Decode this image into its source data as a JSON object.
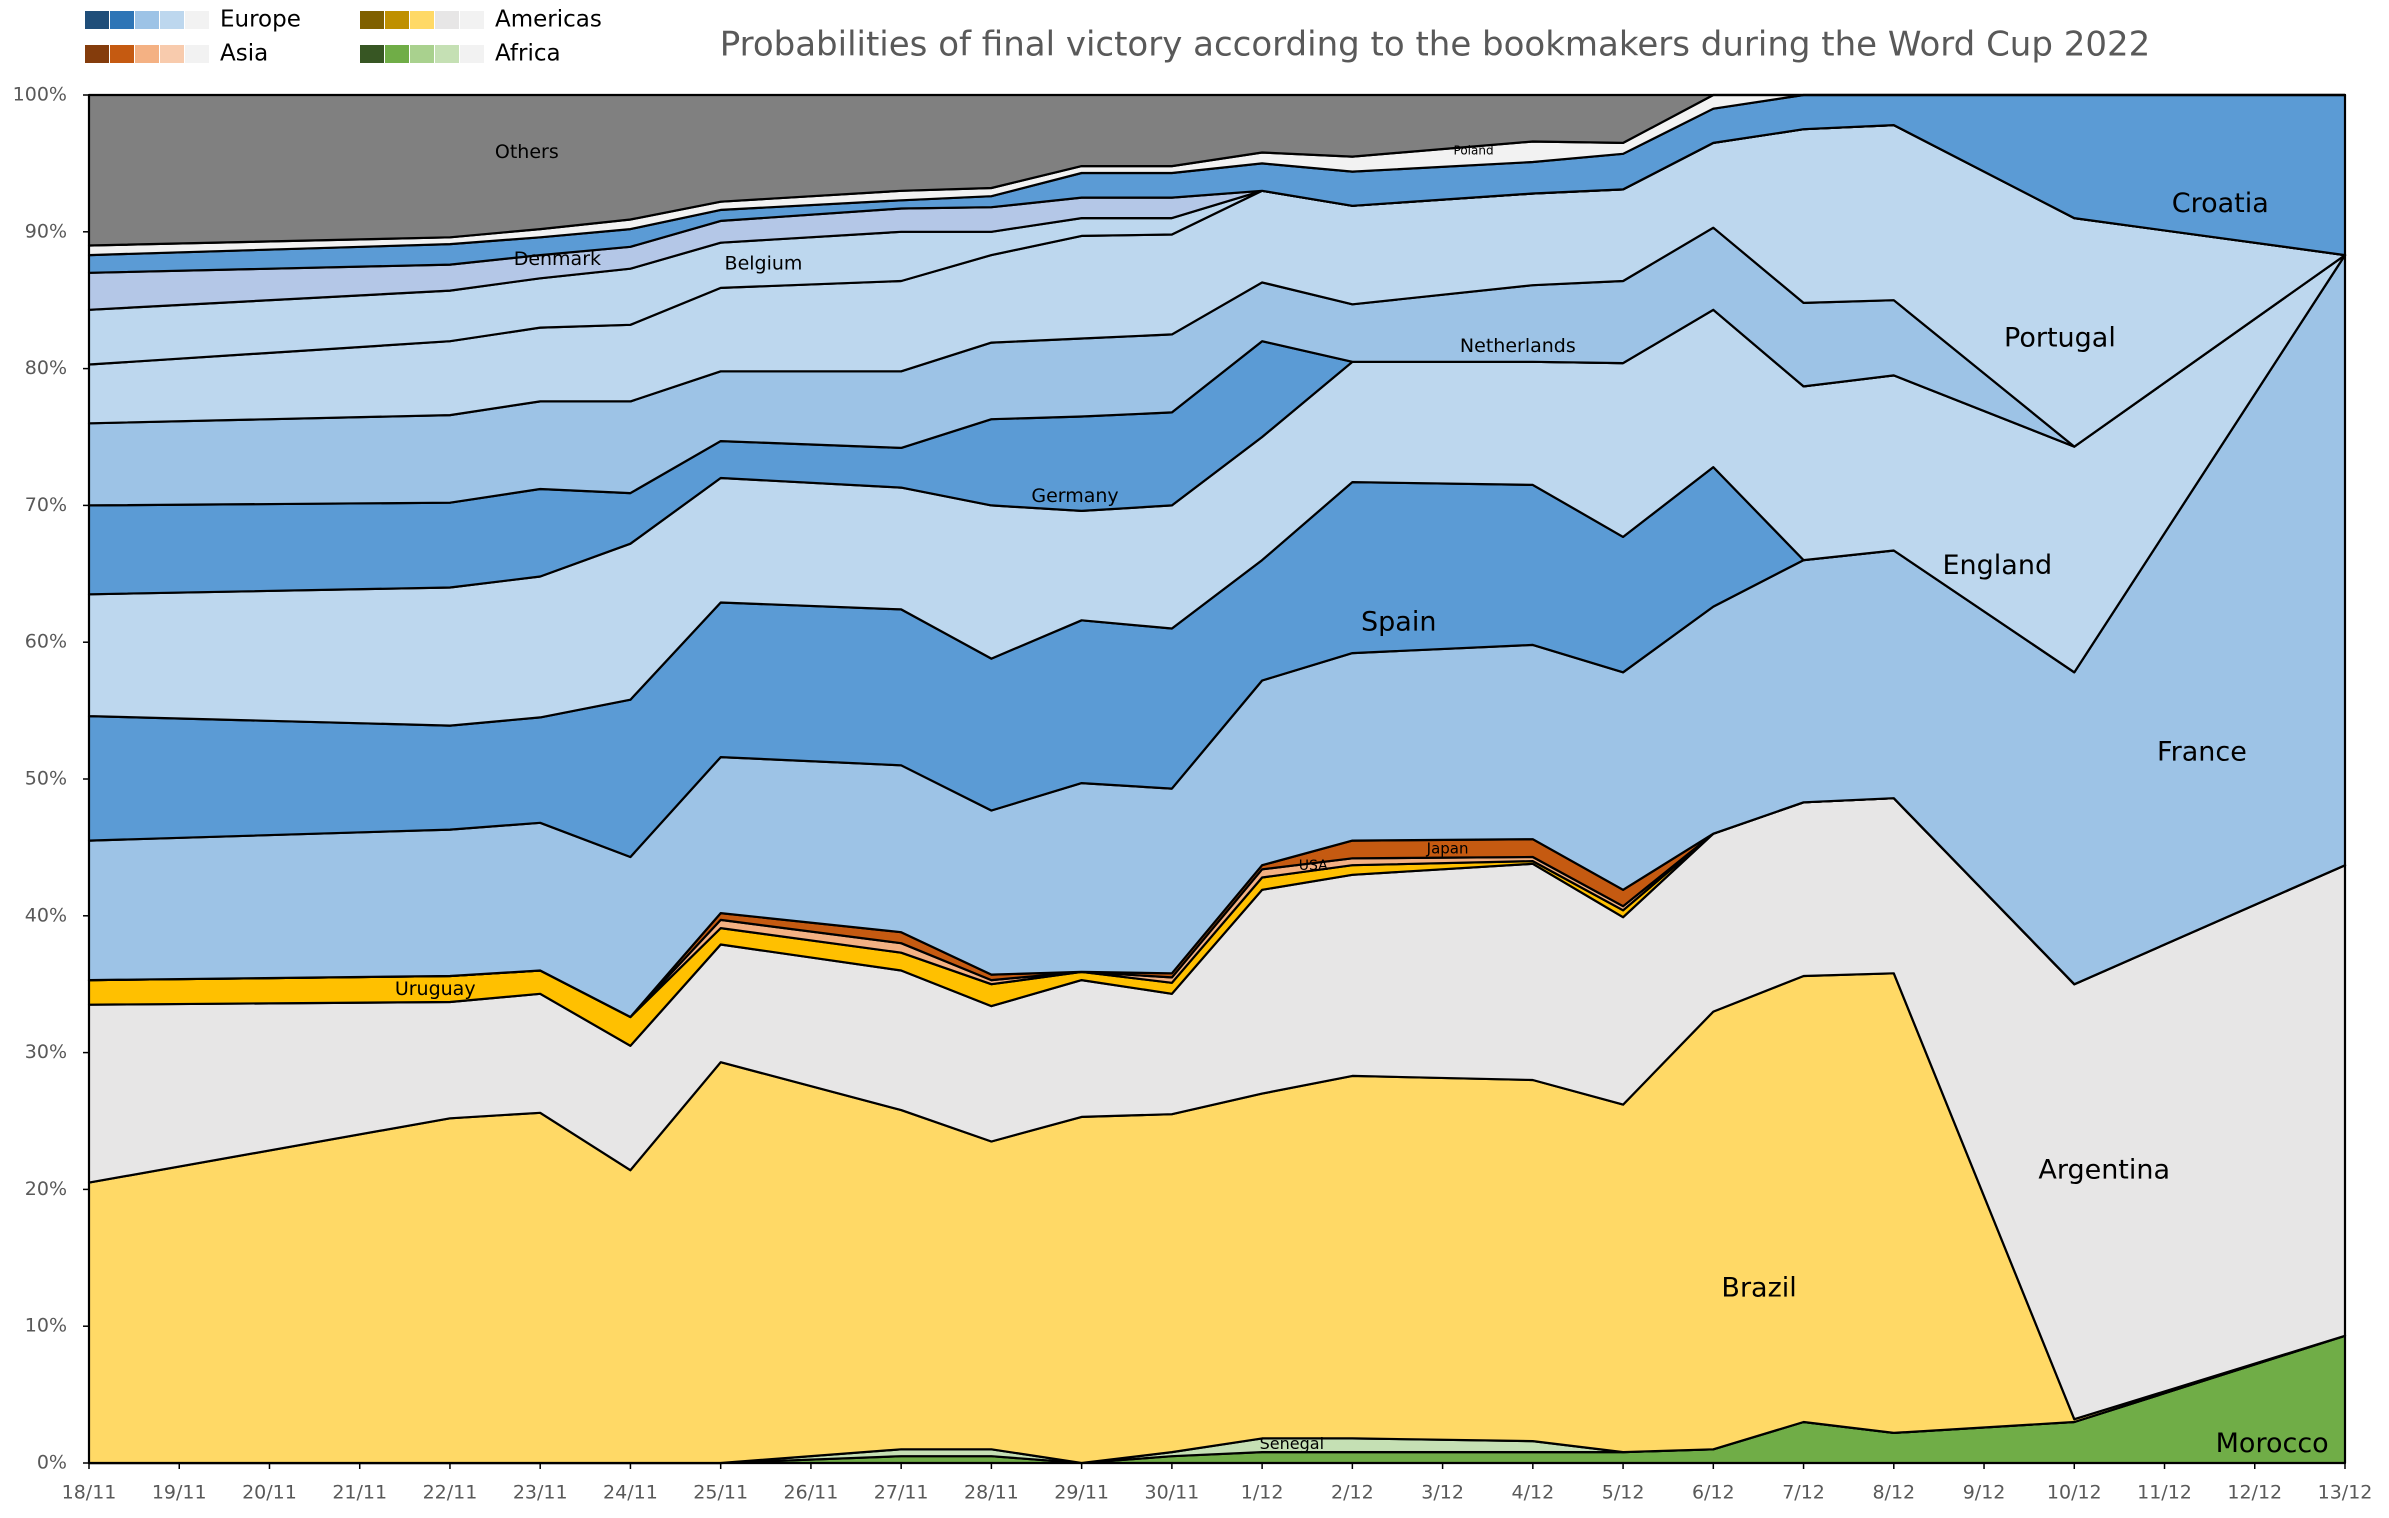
{
  "chart_data": {
    "type": "stacked_area",
    "title": "Probabilities of final victory according to the bookmakers during the Word Cup 2022",
    "legend_groups": [
      {
        "name": "Europe",
        "colors": [
          "#1f4e79",
          "#2e75b6",
          "#9dc3e6",
          "#bdd7ee",
          "#f2f2f2"
        ]
      },
      {
        "name": "Asia",
        "colors": [
          "#843c0c",
          "#c55a11",
          "#f4b183",
          "#f8cbad",
          "#f2f2f2"
        ]
      },
      {
        "name": "Americas",
        "colors": [
          "#7f6000",
          "#bf9000",
          "#ffd966",
          "#e7e6e6",
          "#f2f2f2"
        ]
      },
      {
        "name": "Africa",
        "colors": [
          "#375623",
          "#70ad47",
          "#a9d18e",
          "#c5e0b4",
          "#f2f2f2"
        ]
      }
    ],
    "categories": [
      "18/11",
      "19/11",
      "20/11",
      "21/11",
      "22/11",
      "23/11",
      "24/11",
      "25/11",
      "26/11",
      "27/11",
      "28/11",
      "29/11",
      "30/11",
      "1/12",
      "2/12",
      "3/12",
      "4/12",
      "5/12",
      "6/12",
      "7/12",
      "8/12",
      "9/12",
      "10/12",
      "11/12",
      "12/12",
      "13/12"
    ],
    "x": [
      "18/11",
      "22/11",
      "23/11",
      "24/11",
      "25/11",
      "27/11",
      "28/11",
      "29/11",
      "30/11",
      "1/12",
      "2/12",
      "4/12",
      "5/12",
      "6/12",
      "7/12",
      "8/12",
      "10/12",
      "13/12"
    ],
    "ylim": [
      0,
      100
    ],
    "yticks": [
      {
        "value": 0,
        "label": "0%"
      },
      {
        "value": 10,
        "label": "10%"
      },
      {
        "value": 20,
        "label": "20%"
      },
      {
        "value": 30,
        "label": "30%"
      },
      {
        "value": 40,
        "label": "40%"
      },
      {
        "value": 50,
        "label": "50%"
      },
      {
        "value": 60,
        "label": "60%"
      },
      {
        "value": 70,
        "label": "70%"
      },
      {
        "value": 80,
        "label": "80%"
      },
      {
        "value": 90,
        "label": "90%"
      },
      {
        "value": 100,
        "label": "100%"
      }
    ],
    "series": [
      {
        "name": "Morocco",
        "color": "#70ad47",
        "values": [
          0,
          0,
          0,
          0,
          0,
          0.5,
          0.5,
          0,
          0.5,
          0.8,
          0.8,
          0.8,
          0.8,
          1,
          3,
          2.2,
          3,
          9.3
        ]
      },
      {
        "name": "Senegal",
        "color": "#c5e0b4",
        "values": [
          0,
          0,
          0,
          0,
          0,
          0.5,
          0.5,
          0,
          0.3,
          1,
          1,
          0.8,
          0,
          0,
          0,
          0,
          0,
          0
        ]
      },
      {
        "name": "Brazil",
        "color": "#ffd966",
        "values": [
          20.5,
          25.2,
          25.6,
          21.4,
          29.3,
          24.8,
          22.5,
          25.3,
          24.7,
          25.2,
          26.5,
          26.4,
          25.4,
          32,
          32.6,
          33.6,
          0.2,
          0
        ]
      },
      {
        "name": "Argentina",
        "color": "#e7e6e6",
        "values": [
          13,
          8.5,
          8.7,
          9.1,
          8.6,
          10.2,
          9.9,
          10,
          8.8,
          14.9,
          14.7,
          15.8,
          13.7,
          13,
          12.7,
          12.8,
          31.8,
          34.4
        ]
      },
      {
        "name": "Uruguay",
        "color": "#ffc000",
        "values": [
          1.8,
          1.9,
          1.7,
          2.1,
          1.2,
          1.3,
          1.6,
          0.6,
          0.8,
          0.9,
          0.7,
          0.2,
          0.5,
          0,
          0,
          0,
          0,
          0
        ]
      },
      {
        "name": "USA",
        "color": "#f4b183",
        "values": [
          0,
          0,
          0,
          0,
          0.6,
          0.7,
          0.3,
          0,
          0.4,
          0.6,
          0.5,
          0.3,
          0.3,
          0,
          0,
          0,
          0,
          0
        ]
      },
      {
        "name": "Japan",
        "color": "#c55a11",
        "values": [
          0,
          0,
          0,
          0,
          0.5,
          0.8,
          0.4,
          0,
          0.3,
          0.3,
          1.3,
          1.3,
          1.2,
          0,
          0,
          0,
          0,
          0
        ]
      },
      {
        "name": "France",
        "color": "#9dc3e6",
        "values": [
          10.2,
          10.7,
          10.8,
          11.7,
          11.4,
          12.2,
          12,
          13.8,
          13.5,
          13.5,
          13.7,
          14.2,
          15.9,
          16.6,
          17.7,
          18.1,
          22.8,
          44.6
        ]
      },
      {
        "name": "Spain",
        "color": "#5b9bd5",
        "values": [
          9.1,
          7.6,
          7.7,
          11.5,
          11.3,
          11.4,
          11.1,
          11.9,
          11.7,
          8.8,
          12.5,
          11.7,
          9.9,
          10.2,
          0,
          0,
          0,
          0
        ]
      },
      {
        "name": "England",
        "color": "#bdd7ee",
        "values": [
          8.9,
          10.1,
          10.3,
          11.4,
          9.1,
          8.9,
          11.2,
          8,
          9,
          9,
          8.8,
          9,
          12.7,
          11.5,
          12.7,
          12.8,
          16.5,
          0
        ]
      },
      {
        "name": "Germany",
        "color": "#5b9bd5",
        "values": [
          6.5,
          6.2,
          6.4,
          3.7,
          2.7,
          2.9,
          6.3,
          6.9,
          6.8,
          7,
          0,
          0,
          0,
          0,
          0,
          0,
          0,
          0
        ]
      },
      {
        "name": "Netherlands",
        "color": "#9dc3e6",
        "values": [
          6,
          6.4,
          6.4,
          6.7,
          5.1,
          5.6,
          5.6,
          5.7,
          5.7,
          4.3,
          4.2,
          5.6,
          6,
          6,
          6.1,
          5.5,
          0,
          0
        ]
      },
      {
        "name": "Portugal",
        "color": "#bdd7ee",
        "values": [
          4.3,
          5.4,
          5.4,
          5.6,
          6.1,
          6.6,
          6.4,
          7.5,
          7.3,
          6.7,
          7.2,
          6.7,
          6.7,
          6.2,
          12.7,
          12.8,
          16.7,
          0
        ]
      },
      {
        "name": "Belgium",
        "color": "#bdd7ee",
        "values": [
          4,
          3.7,
          3.6,
          4.1,
          3.3,
          3.6,
          1.7,
          1.3,
          1.2,
          0,
          0,
          0,
          0,
          0,
          0,
          0,
          0,
          0
        ]
      },
      {
        "name": "Denmark",
        "color": "#b4c7e7",
        "values": [
          2.7,
          1.9,
          1.7,
          1.6,
          1.6,
          1.7,
          1.8,
          1.5,
          1.5,
          0,
          0,
          0,
          0,
          0,
          0,
          0,
          0,
          0
        ]
      },
      {
        "name": "Croatia",
        "color": "#5b9bd5",
        "values": [
          1.3,
          1.5,
          1.3,
          1.3,
          0.8,
          0.6,
          0.8,
          1.8,
          1.8,
          2,
          2.5,
          2.3,
          2.6,
          2.5,
          2.5,
          2.2,
          9,
          11.7
        ]
      },
      {
        "name": "Poland",
        "color": "#f2f2f2",
        "values": [
          0.7,
          0.5,
          0.6,
          0.7,
          0.6,
          0.7,
          0.6,
          0.5,
          0.5,
          0.8,
          1.1,
          1.5,
          0.8,
          1,
          0,
          0,
          0,
          0
        ]
      },
      {
        "name": "Others",
        "color": "#808080",
        "values": [
          11,
          10.4,
          9.8,
          9.1,
          7.8,
          7,
          6.8,
          5.2,
          5.2,
          4.2,
          4.5,
          3.4,
          3.5,
          0,
          0,
          0,
          0,
          0
        ]
      }
    ]
  }
}
